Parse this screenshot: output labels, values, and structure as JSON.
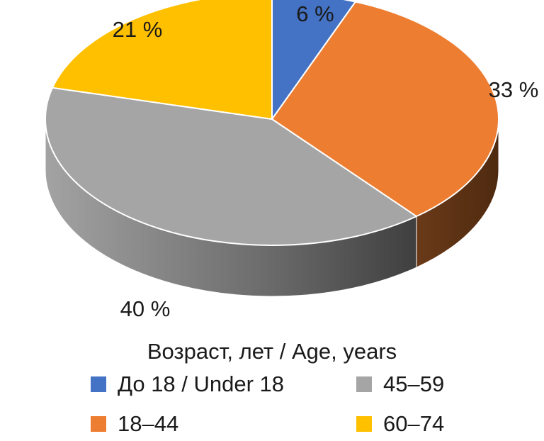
{
  "chart_data": {
    "type": "pie",
    "style": "3d",
    "categories": [
      "До 18 / Under 18",
      "18–44",
      "45–59",
      "60–74"
    ],
    "values": [
      6,
      33,
      40,
      21
    ],
    "value_labels": [
      "6 %",
      "33 %",
      "40 %",
      "21 %"
    ],
    "colors": [
      "#4472C4",
      "#ED7D31",
      "#A5A5A5",
      "#FFC000"
    ],
    "side_colors": [
      "#2b4b85",
      "#5e3317",
      "#6e6e6e",
      "#9a7400"
    ],
    "legend_title": "Возраст, лет / Age, years",
    "legend_placement": "bottom"
  }
}
